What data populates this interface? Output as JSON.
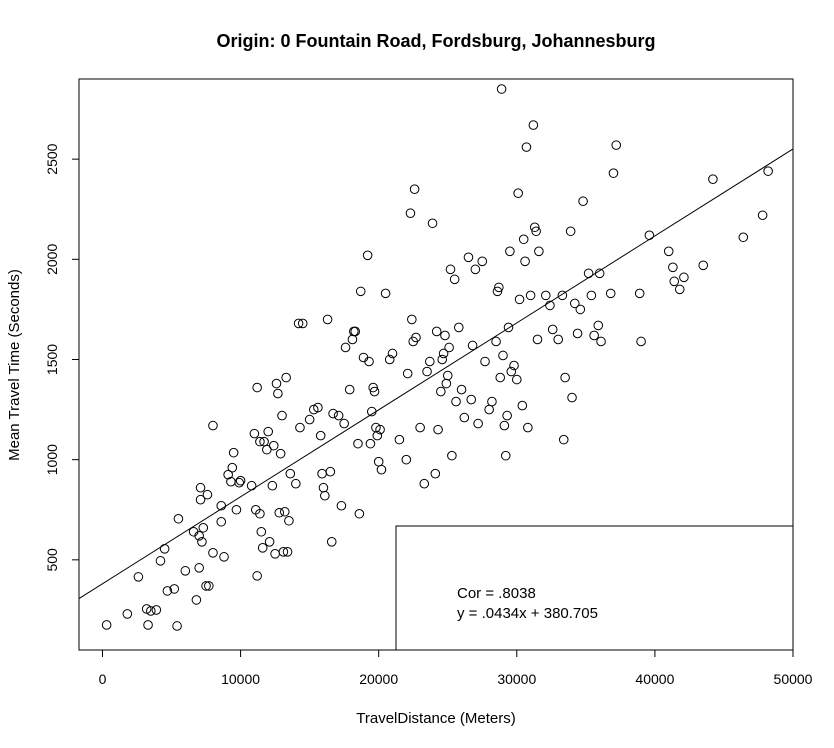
{
  "chart_data": {
    "type": "scatter",
    "title": "Origin: 0 Fountain Road, Fordsburg, Johannesburg",
    "xlabel": "TravelDistance (Meters)",
    "ylabel": "Mean Travel Time (Seconds)",
    "xlim": [
      -1700,
      50000
    ],
    "ylim": [
      50,
      2900
    ],
    "xticks": [
      0,
      10000,
      20000,
      30000,
      40000,
      50000
    ],
    "xtick_labels": [
      "0",
      "10000",
      "20000",
      "30000",
      "40000",
      "50000"
    ],
    "yticks": [
      500,
      1000,
      1500,
      2000,
      2500
    ],
    "ytick_labels": [
      "500",
      "1000",
      "1500",
      "2000",
      "2500"
    ],
    "grid": false,
    "marker": "open-circle",
    "regression": {
      "slope": 0.0434,
      "intercept": 380.705
    },
    "annotation": {
      "position": "bottom-right",
      "lines": [
        "Cor = .8038",
        "y = .0434x + 380.705"
      ]
    },
    "points": [
      [
        300,
        175
      ],
      [
        1800,
        230
      ],
      [
        2600,
        415
      ],
      [
        3200,
        255
      ],
      [
        3500,
        245
      ],
      [
        3300,
        175
      ],
      [
        3900,
        250
      ],
      [
        4200,
        495
      ],
      [
        4500,
        555
      ],
      [
        4700,
        345
      ],
      [
        5200,
        355
      ],
      [
        5400,
        170
      ],
      [
        5500,
        705
      ],
      [
        6000,
        445
      ],
      [
        6600,
        640
      ],
      [
        6800,
        300
      ],
      [
        7000,
        620
      ],
      [
        7100,
        860
      ],
      [
        7000,
        460
      ],
      [
        7100,
        800
      ],
      [
        7200,
        590
      ],
      [
        7300,
        660
      ],
      [
        7500,
        370
      ],
      [
        7600,
        825
      ],
      [
        7700,
        370
      ],
      [
        8000,
        1170
      ],
      [
        8000,
        535
      ],
      [
        8600,
        770
      ],
      [
        8600,
        690
      ],
      [
        8800,
        515
      ],
      [
        9100,
        925
      ],
      [
        9300,
        890
      ],
      [
        9400,
        960
      ],
      [
        9500,
        1035
      ],
      [
        9700,
        750
      ],
      [
        9900,
        885
      ],
      [
        10000,
        895
      ],
      [
        10800,
        870
      ],
      [
        11000,
        1130
      ],
      [
        11100,
        750
      ],
      [
        11200,
        420
      ],
      [
        11200,
        1360
      ],
      [
        11400,
        1090
      ],
      [
        11400,
        730
      ],
      [
        11500,
        640
      ],
      [
        11600,
        560
      ],
      [
        11700,
        1090
      ],
      [
        11900,
        1050
      ],
      [
        12000,
        1140
      ],
      [
        12100,
        590
      ],
      [
        12300,
        870
      ],
      [
        12400,
        1070
      ],
      [
        12500,
        530
      ],
      [
        12600,
        1380
      ],
      [
        12700,
        1330
      ],
      [
        12800,
        735
      ],
      [
        12900,
        1030
      ],
      [
        13000,
        1220
      ],
      [
        13100,
        540
      ],
      [
        13200,
        740
      ],
      [
        13300,
        1410
      ],
      [
        13400,
        540
      ],
      [
        13500,
        695
      ],
      [
        13600,
        930
      ],
      [
        14000,
        880
      ],
      [
        14200,
        1680
      ],
      [
        14300,
        1160
      ],
      [
        14500,
        1680
      ],
      [
        15000,
        1200
      ],
      [
        15300,
        1250
      ],
      [
        15600,
        1260
      ],
      [
        15800,
        1120
      ],
      [
        15900,
        930
      ],
      [
        16000,
        860
      ],
      [
        16100,
        820
      ],
      [
        16300,
        1700
      ],
      [
        16500,
        940
      ],
      [
        16600,
        590
      ],
      [
        16700,
        1230
      ],
      [
        17100,
        1220
      ],
      [
        17300,
        770
      ],
      [
        17500,
        1180
      ],
      [
        17600,
        1560
      ],
      [
        17900,
        1350
      ],
      [
        18100,
        1600
      ],
      [
        18200,
        1640
      ],
      [
        18300,
        1640
      ],
      [
        18500,
        1080
      ],
      [
        18600,
        730
      ],
      [
        18700,
        1840
      ],
      [
        18900,
        1510
      ],
      [
        19200,
        2020
      ],
      [
        19300,
        1490
      ],
      [
        19400,
        1080
      ],
      [
        19500,
        1240
      ],
      [
        19600,
        1360
      ],
      [
        19700,
        1340
      ],
      [
        19800,
        1160
      ],
      [
        19900,
        1120
      ],
      [
        20000,
        990
      ],
      [
        20100,
        1150
      ],
      [
        20200,
        950
      ],
      [
        20500,
        1830
      ],
      [
        20800,
        1500
      ],
      [
        21000,
        1530
      ],
      [
        21500,
        1100
      ],
      [
        22000,
        1000
      ],
      [
        22100,
        1430
      ],
      [
        22300,
        2230
      ],
      [
        22400,
        1700
      ],
      [
        22500,
        1590
      ],
      [
        22600,
        2350
      ],
      [
        22700,
        1610
      ],
      [
        23000,
        1160
      ],
      [
        23300,
        880
      ],
      [
        23500,
        1440
      ],
      [
        23700,
        1490
      ],
      [
        23900,
        2180
      ],
      [
        24100,
        930
      ],
      [
        24200,
        1640
      ],
      [
        24300,
        1150
      ],
      [
        24500,
        1340
      ],
      [
        24600,
        1500
      ],
      [
        24700,
        1530
      ],
      [
        24800,
        1620
      ],
      [
        24900,
        1380
      ],
      [
        25000,
        1420
      ],
      [
        25100,
        1560
      ],
      [
        25200,
        1950
      ],
      [
        25300,
        1020
      ],
      [
        25500,
        1900
      ],
      [
        25600,
        1290
      ],
      [
        25800,
        1660
      ],
      [
        26000,
        1350
      ],
      [
        26200,
        1210
      ],
      [
        26500,
        2010
      ],
      [
        26700,
        1300
      ],
      [
        26800,
        1570
      ],
      [
        27000,
        1950
      ],
      [
        27200,
        1180
      ],
      [
        27500,
        1990
      ],
      [
        27700,
        1490
      ],
      [
        28000,
        1250
      ],
      [
        28200,
        1290
      ],
      [
        28500,
        1590
      ],
      [
        28600,
        1840
      ],
      [
        28700,
        1860
      ],
      [
        28800,
        1410
      ],
      [
        28900,
        2850
      ],
      [
        29000,
        1520
      ],
      [
        29100,
        1170
      ],
      [
        29200,
        1020
      ],
      [
        29300,
        1220
      ],
      [
        29400,
        1660
      ],
      [
        29500,
        2040
      ],
      [
        29600,
        1440
      ],
      [
        29800,
        1470
      ],
      [
        30000,
        1400
      ],
      [
        30100,
        2330
      ],
      [
        30200,
        1800
      ],
      [
        30400,
        1270
      ],
      [
        30500,
        2100
      ],
      [
        30600,
        1990
      ],
      [
        30700,
        2560
      ],
      [
        30800,
        1160
      ],
      [
        31000,
        1820
      ],
      [
        31200,
        2670
      ],
      [
        31300,
        2160
      ],
      [
        31400,
        2140
      ],
      [
        31500,
        1600
      ],
      [
        31600,
        2040
      ],
      [
        32100,
        1820
      ],
      [
        32400,
        1770
      ],
      [
        32600,
        1650
      ],
      [
        33000,
        1600
      ],
      [
        33300,
        1820
      ],
      [
        33400,
        1100
      ],
      [
        33500,
        1410
      ],
      [
        33900,
        2140
      ],
      [
        34000,
        1310
      ],
      [
        34200,
        1780
      ],
      [
        34400,
        1630
      ],
      [
        34600,
        1750
      ],
      [
        34800,
        2290
      ],
      [
        35200,
        1930
      ],
      [
        35400,
        1820
      ],
      [
        35600,
        1620
      ],
      [
        35900,
        1670
      ],
      [
        36000,
        1930
      ],
      [
        36100,
        1590
      ],
      [
        36800,
        1830
      ],
      [
        37000,
        2430
      ],
      [
        37200,
        2570
      ],
      [
        38900,
        1830
      ],
      [
        39000,
        1590
      ],
      [
        39600,
        2120
      ],
      [
        41000,
        2040
      ],
      [
        41300,
        1960
      ],
      [
        41400,
        1890
      ],
      [
        41800,
        1850
      ],
      [
        42100,
        1910
      ],
      [
        43500,
        1970
      ],
      [
        44200,
        2400
      ],
      [
        46400,
        2110
      ],
      [
        47800,
        2220
      ],
      [
        48200,
        2440
      ]
    ]
  }
}
